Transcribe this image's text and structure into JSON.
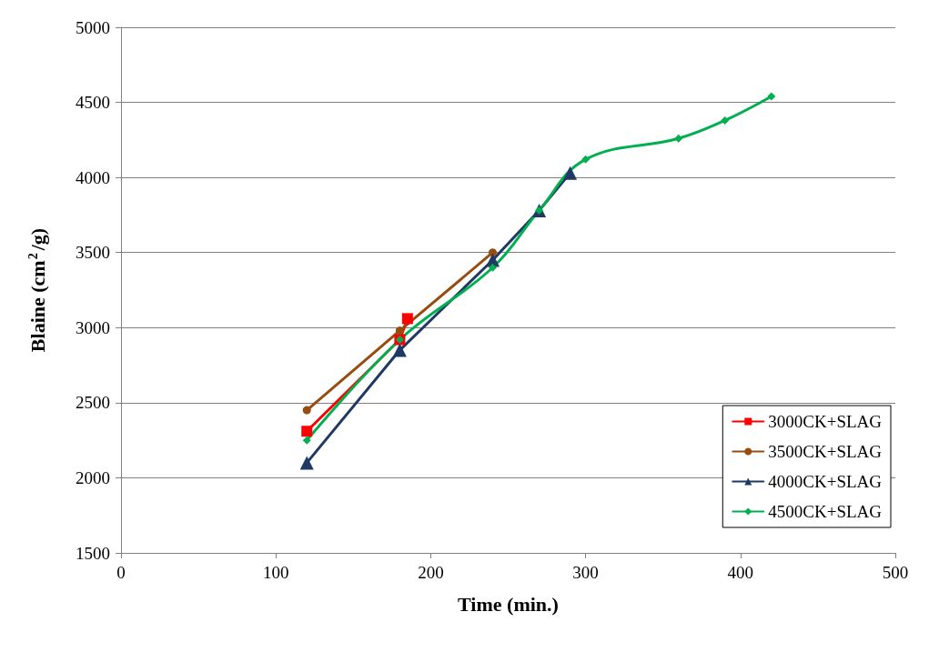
{
  "chart_data": {
    "type": "line",
    "xlabel": "Time (min.)",
    "ylabel": "Blaine (cm$^{2}$/g)",
    "xlim": [
      0,
      500
    ],
    "xticks": [
      0,
      100,
      200,
      300,
      400,
      500
    ],
    "ylim": [
      1500,
      5000
    ],
    "yticks": [
      1500,
      2000,
      2500,
      3000,
      3500,
      4000,
      4500,
      5000
    ],
    "grid": "y",
    "legend": "bottom right",
    "series": [
      {
        "name": "3000CK+SLAG",
        "color": "#ff0000",
        "marker": "square",
        "x": [
          120,
          180,
          185
        ],
        "values": [
          2310,
          2920,
          3060
        ]
      },
      {
        "name": "3500CK+SLAG",
        "color": "#994c0f",
        "marker": "circle",
        "x": [
          120,
          180,
          240
        ],
        "values": [
          2450,
          2980,
          3500
        ]
      },
      {
        "name": "4000CK+SLAG",
        "color": "#1f3864",
        "marker": "triangle",
        "x": [
          120,
          180,
          240,
          270,
          290
        ],
        "values": [
          2100,
          2850,
          3450,
          3780,
          4030
        ]
      },
      {
        "name": "4500CK+SLAG",
        "color": "#00b050",
        "marker": "diamond",
        "x": [
          120,
          180,
          240,
          270,
          300,
          360,
          390,
          420
        ],
        "values": [
          2250,
          2920,
          3400,
          3780,
          4120,
          4260,
          4380,
          4540
        ]
      }
    ]
  }
}
